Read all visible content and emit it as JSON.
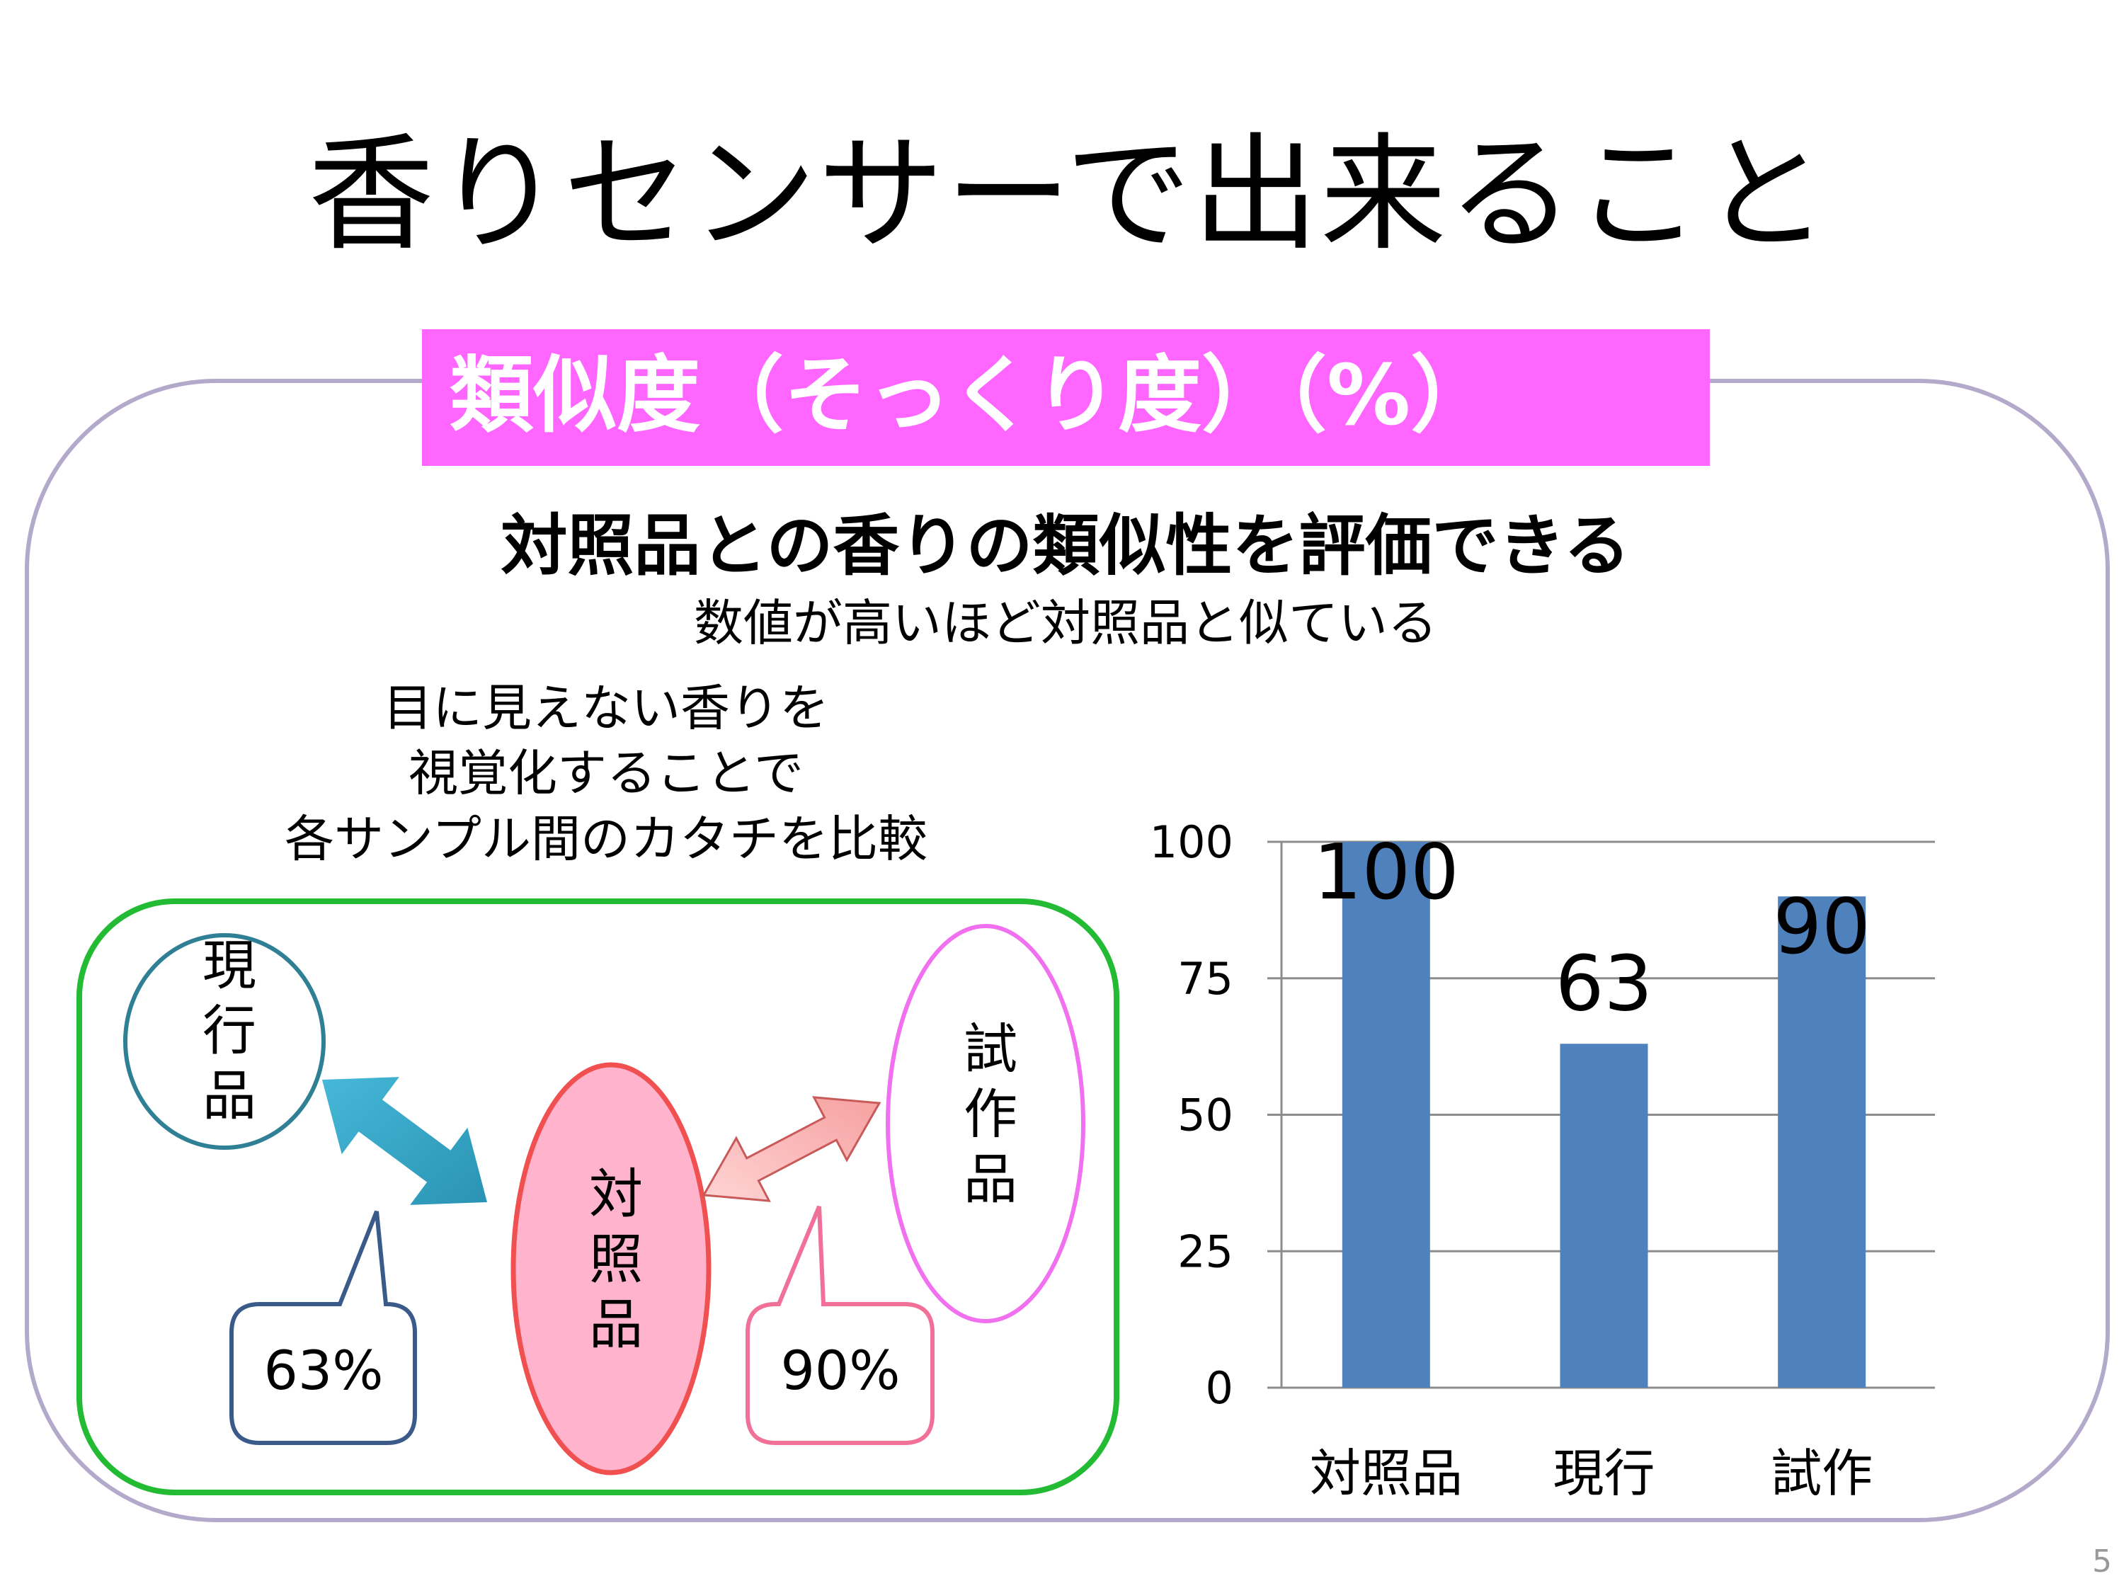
{
  "title": "香りセンサーで出来ること",
  "banner": "類似度（そっくり度）（%）",
  "subheading": "対照品との香りの類似性を評価できる",
  "subtext": "数値が高いほど対照品と似ている",
  "description_lines": [
    "目に見えない香りを",
    "視覚化することで",
    "各サンプル間のカタチを比較"
  ],
  "diagram": {
    "current": "現行品",
    "reference": "対照品",
    "prototype": "試作品",
    "current_similarity": "63%",
    "prototype_similarity": "90%"
  },
  "colors": {
    "banner": "#ff66ff",
    "bar": "#4f81bd",
    "green_frame": "#22bb33",
    "current_stroke": "#2f7f95",
    "reference_fill": "#ffb3cc",
    "reference_stroke": "#f05050",
    "prototype_stroke": "#f070f0"
  },
  "chart_data": {
    "type": "bar",
    "categories": [
      "対照品",
      "現行",
      "試作"
    ],
    "values": [
      100,
      63,
      90
    ],
    "data_labels": [
      "100",
      "63",
      "90"
    ],
    "yticks": [
      "0",
      "25",
      "50",
      "75",
      "100"
    ],
    "ylim": [
      0,
      100
    ],
    "grid": true,
    "title": "",
    "xlabel": "",
    "ylabel": ""
  },
  "page_number": "5"
}
